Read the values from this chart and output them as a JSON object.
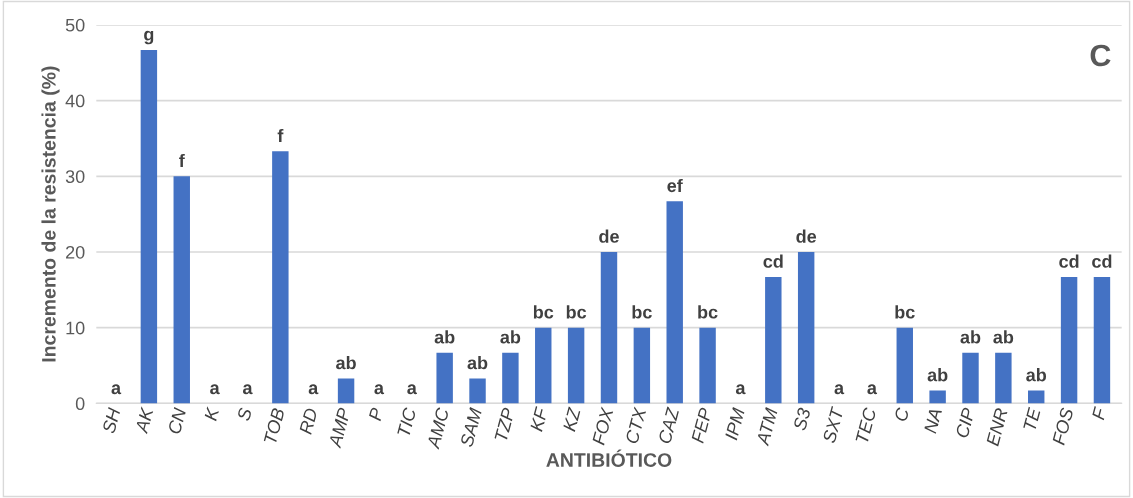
{
  "chart_data": {
    "type": "bar",
    "xlabel": "ANTIBIÓTICO",
    "ylabel": "Incremento de la resistencia (%)",
    "annotations": [
      "C"
    ],
    "categories": [
      "SH",
      "AK",
      "CN",
      "K",
      "S",
      "TOB",
      "RD",
      "AMP",
      "P",
      "TIC",
      "AMC",
      "SAM",
      "TZP",
      "KF",
      "KZ",
      "FOX",
      "CTX",
      "CAZ",
      "FEP",
      "IPM",
      "ATM",
      "S3",
      "SXT",
      "TEC",
      "C",
      "NA",
      "CIP",
      "ENR",
      "TE",
      "FOS",
      "F"
    ],
    "values": [
      0,
      46.7,
      30,
      0,
      0,
      33.3,
      0,
      3.3,
      0,
      0,
      6.7,
      3.3,
      6.7,
      10,
      10,
      20,
      10,
      26.7,
      10,
      0,
      16.7,
      20,
      0,
      0,
      10,
      1.7,
      6.7,
      6.7,
      1.7,
      16.7,
      16.7
    ],
    "value_labels": [
      "a",
      "g",
      "f",
      "a",
      "a",
      "f",
      "a",
      "ab",
      "a",
      "a",
      "ab",
      "ab",
      "ab",
      "bc",
      "bc",
      "de",
      "bc",
      "ef",
      "bc",
      "a",
      "cd",
      "de",
      "a",
      "a",
      "bc",
      "ab",
      "ab",
      "ab",
      "ab",
      "cd",
      "cd"
    ],
    "color": "#4472c4",
    "ylim": [
      0,
      50
    ],
    "yticks": [
      0,
      10,
      20,
      30,
      40,
      50
    ],
    "grid": "y",
    "legend": false
  }
}
